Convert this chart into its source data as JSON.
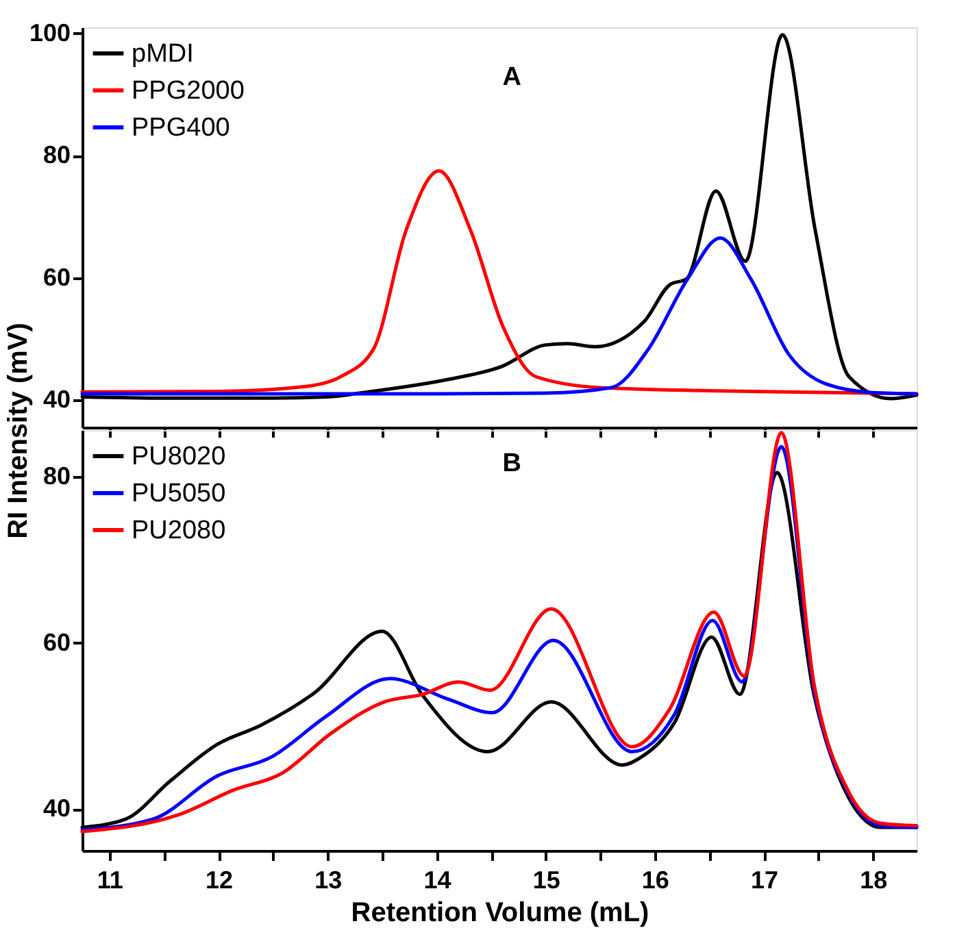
{
  "chart_data": [
    {
      "type": "line",
      "annotations": [
        "A"
      ],
      "xlim": [
        10.75,
        18.4
      ],
      "ylim": [
        35.5,
        101
      ],
      "yticks": [
        40,
        60,
        80,
        100
      ],
      "xticks": [
        11,
        {
          "value": 11.5,
          "label": null
        },
        12,
        {
          "value": 12.5,
          "label": null
        },
        13,
        {
          "value": 13.5,
          "label": null
        },
        14,
        {
          "value": 14.5,
          "label": null
        },
        15,
        {
          "value": 15.5,
          "label": null
        },
        16,
        {
          "value": 16.5,
          "label": null
        },
        17,
        {
          "value": 17.5,
          "label": null
        },
        18
      ],
      "tick_labels": "y",
      "grid": false,
      "legend": "top left",
      "series": [
        {
          "name": "pMDI",
          "color": "#000000",
          "x": [
            10.75,
            11.5,
            12.5,
            13.0,
            13.37,
            14.12,
            14.6,
            15.0,
            15.2,
            15.45,
            15.9,
            16.14,
            16.29,
            16.56,
            16.83,
            17.17,
            17.47,
            17.78,
            18.16,
            18.4
          ],
          "values": [
            40.5,
            40.3,
            40.3,
            40.5,
            41.3,
            43.4,
            45.5,
            49.0,
            49.2,
            48.7,
            52.8,
            58.9,
            59.8,
            74.2,
            62.7,
            99.8,
            67.8,
            43.8,
            40.2,
            40.8
          ]
        },
        {
          "name": "PPG2000",
          "color": "#ff0000",
          "x": [
            10.75,
            12.0,
            12.8,
            13.13,
            13.42,
            13.72,
            14.02,
            14.31,
            14.61,
            14.91,
            15.5,
            16.5,
            17.2,
            18.4
          ],
          "values": [
            41.3,
            41.4,
            42.2,
            43.9,
            48.3,
            67.8,
            77.5,
            67.8,
            51.9,
            43.8,
            42.0,
            41.5,
            41.3,
            41.0
          ]
        },
        {
          "name": "PPG400",
          "color": "#0000ff",
          "x": [
            10.75,
            12.5,
            14.0,
            15.0,
            15.6,
            15.94,
            16.3,
            16.6,
            16.88,
            17.23,
            17.57,
            18.0,
            18.4
          ],
          "values": [
            41.0,
            41.0,
            41.0,
            41.1,
            42.0,
            48.3,
            59.8,
            66.5,
            59.8,
            47.4,
            42.6,
            41.2,
            41.0
          ]
        }
      ]
    },
    {
      "type": "line",
      "annotations": [
        "B"
      ],
      "xlabel": "Retention Volume (mL)",
      "ylabel": "RI Intensity (mV)",
      "xlim": [
        10.75,
        18.4
      ],
      "ylim": [
        35,
        85.6
      ],
      "yticks": [
        40,
        60,
        80
      ],
      "xticks": [
        11,
        {
          "value": 11.5,
          "label": null
        },
        12,
        {
          "value": 12.5,
          "label": null
        },
        13,
        {
          "value": 13.5,
          "label": null
        },
        14,
        {
          "value": 14.5,
          "label": null
        },
        15,
        {
          "value": 15.5,
          "label": null
        },
        16,
        {
          "value": 16.5,
          "label": null
        },
        17,
        {
          "value": 17.5,
          "label": null
        },
        18
      ],
      "grid": false,
      "legend": "top left",
      "series": [
        {
          "name": "PU8020",
          "color": "#000000",
          "x": [
            10.75,
            11.15,
            11.55,
            11.99,
            12.39,
            12.88,
            13.5,
            13.87,
            14.47,
            15.05,
            15.7,
            15.88,
            16.18,
            16.52,
            16.78,
            17.12,
            17.46,
            17.78,
            18.07,
            18.4
          ],
          "values": [
            37.8,
            38.8,
            43.3,
            47.8,
            50.1,
            54.0,
            61.4,
            53.7,
            46.9,
            52.9,
            45.3,
            46.3,
            50.4,
            60.7,
            53.8,
            80.5,
            53.7,
            41.3,
            37.8,
            37.8
          ]
        },
        {
          "name": "PU5050",
          "color": "#0000ff",
          "x": [
            10.75,
            11.4,
            11.99,
            12.49,
            12.98,
            13.57,
            14.11,
            14.51,
            15.07,
            15.79,
            16.18,
            16.53,
            16.8,
            17.16,
            17.46,
            17.78,
            18.07,
            18.4
          ],
          "values": [
            37.5,
            38.8,
            44.0,
            46.3,
            51.1,
            55.7,
            53.2,
            51.6,
            60.3,
            46.9,
            51.4,
            62.7,
            55.3,
            83.6,
            54.4,
            41.8,
            38.0,
            37.8
          ]
        },
        {
          "name": "PU2080",
          "color": "#ff0000",
          "x": [
            10.75,
            11.65,
            12.14,
            12.58,
            13.03,
            13.52,
            13.87,
            14.2,
            14.49,
            15.05,
            15.79,
            16.13,
            16.54,
            16.82,
            17.16,
            17.46,
            17.78,
            18.07,
            18.4
          ],
          "values": [
            37.3,
            39.4,
            42.3,
            44.3,
            49.1,
            52.9,
            53.8,
            55.3,
            54.3,
            64.1,
            47.5,
            51.9,
            63.7,
            56.0,
            85.3,
            55.0,
            42.0,
            38.3,
            38.0
          ]
        }
      ]
    }
  ]
}
